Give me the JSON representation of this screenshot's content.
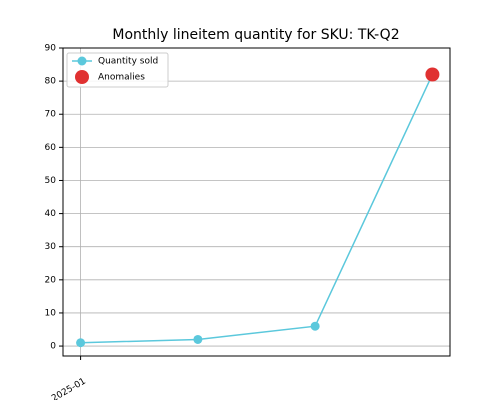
{
  "chart_data": {
    "type": "line",
    "title": "Monthly lineitem quantity for SKU: TK-Q2",
    "categories": [
      "2025-01",
      null,
      null,
      null
    ],
    "series": [
      {
        "name": "Quantity sold",
        "color": "#5bc8dc",
        "values": [
          1,
          2,
          6,
          82
        ]
      },
      {
        "name": "Anomalies",
        "color": "#e03131",
        "values": [
          null,
          null,
          null,
          82
        ],
        "markers_only": true
      }
    ],
    "ylim": [
      -3,
      90
    ],
    "yticks": [
      0,
      10,
      20,
      30,
      40,
      50,
      60,
      70,
      80,
      90
    ],
    "grid": true,
    "legend": "upper-left"
  }
}
